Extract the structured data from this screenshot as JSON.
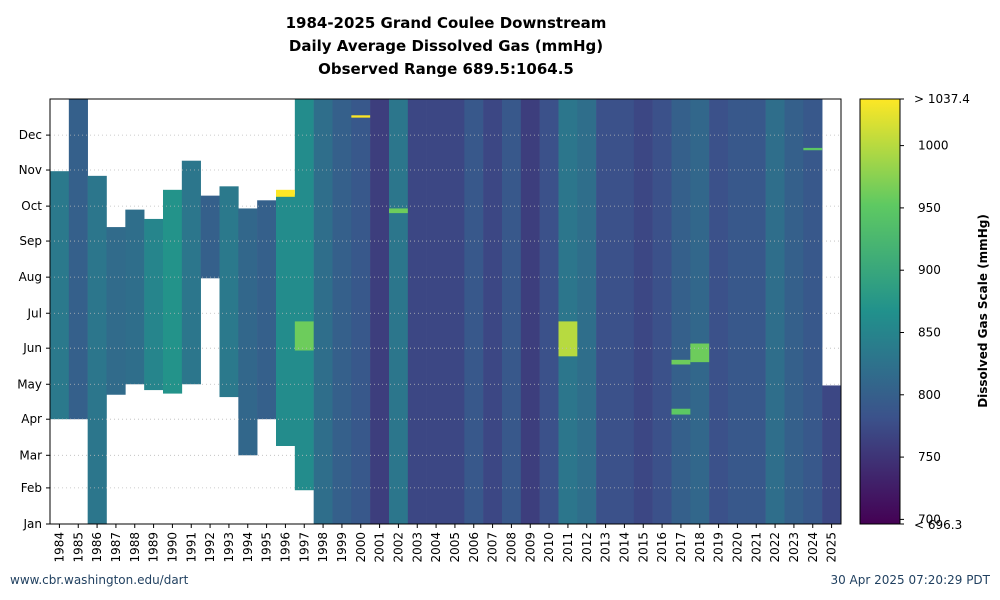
{
  "chart_data": {
    "type": "heatmap",
    "title": [
      "1984-2025 Grand Coulee Downstream",
      "Daily Average Dissolved Gas (mmHg)",
      "Observed Range 689.5:1064.5"
    ],
    "xlabel": "",
    "ylabel": "",
    "x": [
      "1984",
      "1985",
      "1986",
      "1987",
      "1988",
      "1989",
      "1990",
      "1991",
      "1992",
      "1993",
      "1994",
      "1995",
      "1996",
      "1997",
      "1998",
      "1999",
      "2000",
      "2001",
      "2002",
      "2003",
      "2004",
      "2005",
      "2006",
      "2007",
      "2008",
      "2009",
      "2010",
      "2011",
      "2012",
      "2013",
      "2014",
      "2015",
      "2016",
      "2017",
      "2018",
      "2019",
      "2020",
      "2021",
      "2022",
      "2023",
      "2024",
      "2025"
    ],
    "y_ticks": [
      "Jan",
      "Feb",
      "Mar",
      "Apr",
      "May",
      "Jun",
      "Jul",
      "Aug",
      "Sep",
      "Oct",
      "Nov",
      "Dec"
    ],
    "ylim": [
      1,
      366
    ],
    "grid": "dotted horizontal at month starts",
    "colorbar": {
      "label": "Dissolved Gas Scale (mmHg)",
      "ticks": [
        "700",
        "750",
        "800",
        "850",
        "900",
        "950",
        "1000"
      ],
      "top_label": "> 1037.4",
      "bottom_label": "< 696.3",
      "range": [
        696.3,
        1037.4
      ],
      "colormap": "viridis"
    },
    "series": [
      {
        "year": "1984",
        "start_day": 91,
        "end_day": 304,
        "value": 835
      },
      {
        "year": "1985",
        "start_day": 91,
        "end_day": 366,
        "value": 800
      },
      {
        "year": "1986",
        "start_day": 1,
        "end_day": 300,
        "value": 830
      },
      {
        "year": "1987",
        "start_day": 112,
        "end_day": 256,
        "value": 815
      },
      {
        "year": "1988",
        "start_day": 121,
        "end_day": 271,
        "value": 820
      },
      {
        "year": "1989",
        "start_day": 116,
        "end_day": 263,
        "value": 850
      },
      {
        "year": "1990",
        "start_day": 113,
        "end_day": 288,
        "value": 870
      },
      {
        "year": "1991",
        "start_day": 121,
        "end_day": 313,
        "value": 830
      },
      {
        "year": "1992",
        "start_day": 212,
        "end_day": 283,
        "value": 800
      },
      {
        "year": "1993",
        "start_day": 110,
        "end_day": 291,
        "value": 835
      },
      {
        "year": "1994",
        "start_day": 60,
        "end_day": 272,
        "value": 810
      },
      {
        "year": "1995",
        "start_day": 91,
        "end_day": 279,
        "value": 800
      },
      {
        "year": "1996",
        "start_day": 68,
        "end_day": 284,
        "value": 860
      },
      {
        "year": "1997",
        "start_day": 30,
        "end_day": 366,
        "value": 860
      },
      {
        "year": "1998",
        "start_day": 1,
        "end_day": 366,
        "value": 820
      },
      {
        "year": "1999",
        "start_day": 1,
        "end_day": 366,
        "value": 800
      },
      {
        "year": "2000",
        "start_day": 1,
        "end_day": 366,
        "value": 790
      },
      {
        "year": "2001",
        "start_day": 1,
        "end_day": 366,
        "value": 760
      },
      {
        "year": "2002",
        "start_day": 1,
        "end_day": 366,
        "value": 830
      },
      {
        "year": "2003",
        "start_day": 1,
        "end_day": 366,
        "value": 770
      },
      {
        "year": "2004",
        "start_day": 1,
        "end_day": 366,
        "value": 770
      },
      {
        "year": "2005",
        "start_day": 1,
        "end_day": 366,
        "value": 770
      },
      {
        "year": "2006",
        "start_day": 1,
        "end_day": 366,
        "value": 790
      },
      {
        "year": "2007",
        "start_day": 1,
        "end_day": 366,
        "value": 770
      },
      {
        "year": "2008",
        "start_day": 1,
        "end_day": 366,
        "value": 790
      },
      {
        "year": "2009",
        "start_day": 1,
        "end_day": 366,
        "value": 760
      },
      {
        "year": "2010",
        "start_day": 1,
        "end_day": 366,
        "value": 780
      },
      {
        "year": "2011",
        "start_day": 1,
        "end_day": 366,
        "value": 830
      },
      {
        "year": "2012",
        "start_day": 1,
        "end_day": 366,
        "value": 820
      },
      {
        "year": "2013",
        "start_day": 1,
        "end_day": 366,
        "value": 780
      },
      {
        "year": "2014",
        "start_day": 1,
        "end_day": 366,
        "value": 780
      },
      {
        "year": "2015",
        "start_day": 1,
        "end_day": 366,
        "value": 770
      },
      {
        "year": "2016",
        "start_day": 1,
        "end_day": 366,
        "value": 780
      },
      {
        "year": "2017",
        "start_day": 1,
        "end_day": 366,
        "value": 800
      },
      {
        "year": "2018",
        "start_day": 1,
        "end_day": 366,
        "value": 810
      },
      {
        "year": "2019",
        "start_day": 1,
        "end_day": 366,
        "value": 780
      },
      {
        "year": "2020",
        "start_day": 1,
        "end_day": 366,
        "value": 790
      },
      {
        "year": "2021",
        "start_day": 1,
        "end_day": 366,
        "value": 790
      },
      {
        "year": "2022",
        "start_day": 1,
        "end_day": 366,
        "value": 820
      },
      {
        "year": "2023",
        "start_day": 1,
        "end_day": 366,
        "value": 800
      },
      {
        "year": "2024",
        "start_day": 1,
        "end_day": 366,
        "value": 790
      },
      {
        "year": "2025",
        "start_day": 1,
        "end_day": 120,
        "value": 770
      }
    ],
    "highlights": [
      {
        "year": "1996",
        "start_day": 282,
        "end_day": 288,
        "value": 1037
      },
      {
        "year": "1997",
        "start_day": 150,
        "end_day": 175,
        "value": 960
      },
      {
        "year": "2000",
        "start_day": 350,
        "end_day": 352,
        "value": 1037
      },
      {
        "year": "2002",
        "start_day": 268,
        "end_day": 272,
        "value": 960
      },
      {
        "year": "2011",
        "start_day": 145,
        "end_day": 175,
        "value": 1000
      },
      {
        "year": "2017",
        "start_day": 95,
        "end_day": 100,
        "value": 950
      },
      {
        "year": "2017",
        "start_day": 138,
        "end_day": 142,
        "value": 960
      },
      {
        "year": "2018",
        "start_day": 140,
        "end_day": 156,
        "value": 960
      },
      {
        "year": "2024",
        "start_day": 322,
        "end_day": 324,
        "value": 950
      }
    ]
  },
  "footer": {
    "left": "www.cbr.washington.edu/dart",
    "right": "30 Apr 2025 07:20:29 PDT"
  }
}
